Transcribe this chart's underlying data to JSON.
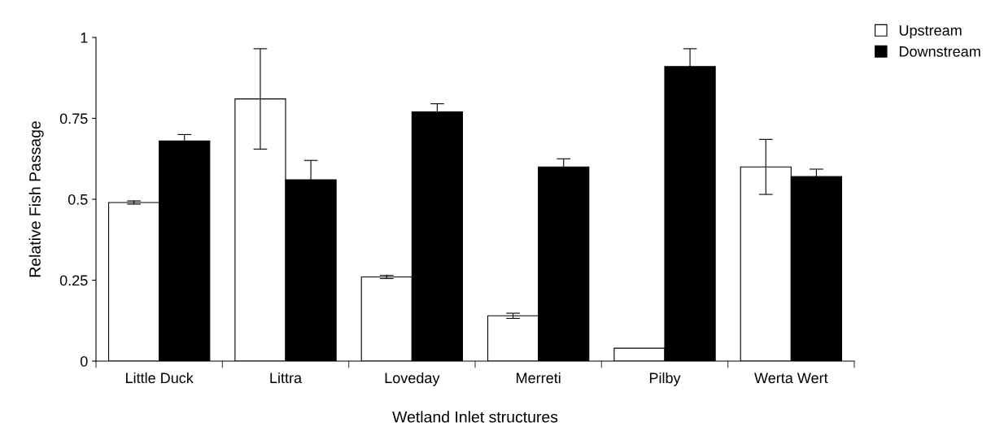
{
  "chart_data": {
    "type": "bar",
    "xlabel": "Wetland Inlet structures",
    "ylabel": "Relative Fish Passage",
    "categories": [
      "Little Duck",
      "Littra",
      "Loveday",
      "Merreti",
      "Pilby",
      "Werta Wert"
    ],
    "series": [
      {
        "name": "Upstream",
        "color": "#ffffff",
        "values": [
          0.49,
          0.81,
          0.26,
          0.14,
          0.04,
          0.6
        ],
        "errors": [
          0.005,
          0.155,
          0.005,
          0.008,
          null,
          0.085
        ]
      },
      {
        "name": "Downstream",
        "color": "#000000",
        "values": [
          0.68,
          0.56,
          0.77,
          0.6,
          0.91,
          0.57
        ],
        "errors": [
          0.02,
          0.06,
          0.025,
          0.025,
          0.055,
          0.023
        ]
      }
    ],
    "ylim": [
      0,
      1
    ],
    "yticks": [
      0,
      0.25,
      0.5,
      0.75,
      1
    ],
    "grid": false,
    "legend": "top right"
  }
}
